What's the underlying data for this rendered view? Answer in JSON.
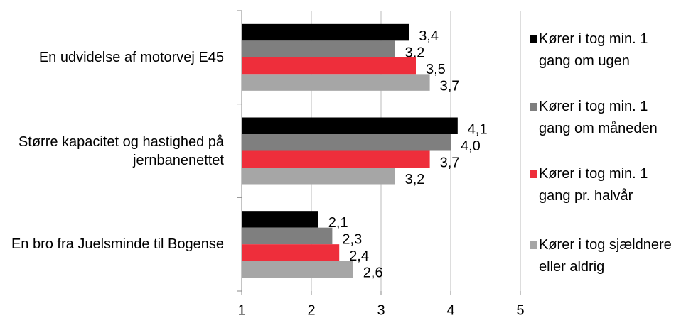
{
  "chart_data": {
    "type": "bar",
    "orientation": "horizontal",
    "categories": [
      "En udvidelse af motorvej E45",
      "Større kapacitet og hastighed på jernbanenettet",
      "En bro fra Juelsminde til Bogense"
    ],
    "series": [
      {
        "name": "Kører i tog min. 1 gang om ugen",
        "color": "#000000",
        "values": [
          3.4,
          4.1,
          2.1
        ],
        "value_labels": [
          "3,4",
          "4,1",
          "2,1"
        ]
      },
      {
        "name": "Kører i tog min. 1 gang om måneden",
        "color": "#7f7f7f",
        "values": [
          3.2,
          4.0,
          2.3
        ],
        "value_labels": [
          "3,2",
          "4,0",
          "2,3"
        ]
      },
      {
        "name": "Kører i tog min. 1 gang pr. halvår",
        "color": "#ee2e3b",
        "values": [
          3.5,
          3.7,
          2.4
        ],
        "value_labels": [
          "3,5",
          "3,7",
          "2,4"
        ]
      },
      {
        "name": "Kører i tog sjældnere eller aldrig",
        "color": "#a6a6a6",
        "values": [
          3.7,
          3.2,
          2.6
        ],
        "value_labels": [
          "3,7",
          "3,2",
          "2,6"
        ]
      }
    ],
    "xlim": [
      1,
      5
    ],
    "xticks": [
      1,
      2,
      3,
      4,
      5
    ],
    "grid": true,
    "legend": "right"
  }
}
